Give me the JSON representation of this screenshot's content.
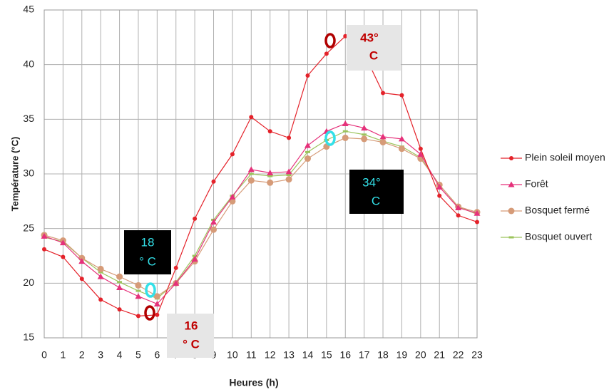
{
  "chart_data": {
    "type": "line",
    "x_label": "Heures (h)",
    "y_label": "Température (°C)",
    "x": [
      0,
      1,
      2,
      3,
      4,
      5,
      6,
      7,
      8,
      9,
      10,
      11,
      12,
      13,
      14,
      15,
      16,
      17,
      18,
      19,
      20,
      21,
      22,
      23
    ],
    "xlim": [
      0,
      23
    ],
    "xticks": [
      0,
      1,
      2,
      3,
      4,
      5,
      6,
      7,
      8,
      9,
      10,
      11,
      12,
      13,
      14,
      15,
      16,
      17,
      18,
      19,
      20,
      21,
      22,
      23
    ],
    "ylim": [
      15,
      45
    ],
    "yticks": [
      15,
      20,
      25,
      30,
      35,
      40,
      45
    ],
    "grid": true,
    "legend": "right",
    "series": [
      {
        "name": "Plein soleil moyen",
        "color": "#e4222a",
        "marker": "circle",
        "values": [
          23.1,
          22.4,
          20.4,
          18.5,
          17.6,
          17.0,
          17.1,
          21.4,
          25.9,
          29.3,
          31.8,
          35.2,
          33.9,
          33.3,
          39.0,
          41.0,
          42.6,
          41.0,
          37.4,
          37.2,
          32.3,
          28.0,
          26.2,
          25.6
        ]
      },
      {
        "name": "Forêt",
        "color": "#e5317a",
        "marker": "triangle",
        "values": [
          24.3,
          23.7,
          22.0,
          20.6,
          19.6,
          18.8,
          18.1,
          20.0,
          22.2,
          25.6,
          27.9,
          30.4,
          30.1,
          30.2,
          32.6,
          33.9,
          34.6,
          34.2,
          33.4,
          33.2,
          31.8,
          28.8,
          26.9,
          26.4
        ]
      },
      {
        "name": "Bosquet fermé",
        "color": "#d69b78",
        "marker": "bigcircle",
        "values": [
          24.4,
          23.9,
          22.3,
          21.3,
          20.6,
          19.8,
          18.8,
          20.0,
          22.0,
          24.9,
          27.5,
          29.4,
          29.2,
          29.5,
          31.4,
          32.5,
          33.3,
          33.2,
          32.9,
          32.3,
          31.4,
          29.0,
          27.0,
          26.5
        ]
      },
      {
        "name": "Bosquet ouvert",
        "color": "#9cc45c",
        "marker": "square",
        "values": [
          24.2,
          23.8,
          22.3,
          21.0,
          20.1,
          19.3,
          18.6,
          20.1,
          22.5,
          25.8,
          28.0,
          30.0,
          29.8,
          29.9,
          32.0,
          33.1,
          33.9,
          33.6,
          33.0,
          32.5,
          31.5,
          29.0,
          27.0,
          26.3
        ]
      }
    ],
    "annotations": [
      {
        "lines": [
          "43°",
          "C"
        ]
      },
      {
        "lines": [
          "34°",
          "C"
        ]
      },
      {
        "lines": [
          "18",
          "° C"
        ]
      },
      {
        "lines": [
          "16",
          "° C"
        ]
      }
    ]
  }
}
